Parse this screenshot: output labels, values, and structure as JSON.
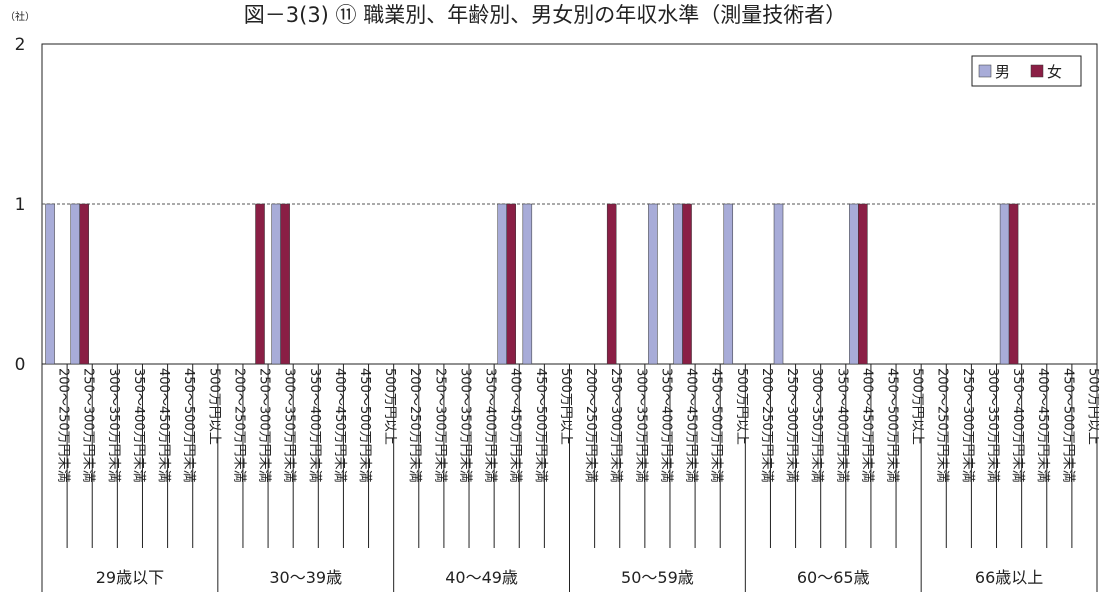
{
  "chart_data": {
    "type": "bar",
    "title": "図－3(3) ⑪ 職業別、年齢別、男女別の年収水準（測量技術者）",
    "unit_label": "（社）",
    "ylim": [
      0,
      2
    ],
    "yticks": [
      "0",
      "1",
      "2"
    ],
    "gridlines": [
      1
    ],
    "legend_position": "top-right",
    "colors": {
      "男": "#a8acd8",
      "女": "#8a1f45"
    },
    "income_categories": [
      "200～250万円未満",
      "250～300万円未満",
      "300～350万円未満",
      "350～400万円未満",
      "400～450万円未満",
      "450～500万円未満",
      "500万円以上"
    ],
    "age_groups": [
      "29歳以下",
      "30～39歳",
      "40～49歳",
      "50～59歳",
      "60～65歳",
      "66歳以上"
    ],
    "series": [
      {
        "name": "男",
        "color": "#a8acd8",
        "values": [
          [
            1,
            1,
            0,
            0,
            0,
            0,
            0
          ],
          [
            0,
            0,
            1,
            0,
            0,
            0,
            0
          ],
          [
            0,
            0,
            0,
            0,
            1,
            1,
            0
          ],
          [
            0,
            0,
            0,
            1,
            1,
            0,
            1
          ],
          [
            0,
            1,
            0,
            0,
            1,
            0,
            0
          ],
          [
            0,
            0,
            0,
            1,
            0,
            0,
            0
          ]
        ]
      },
      {
        "name": "女",
        "color": "#8a1f45",
        "values": [
          [
            0,
            1,
            0,
            0,
            0,
            0,
            0
          ],
          [
            0,
            1,
            1,
            0,
            0,
            0,
            0
          ],
          [
            0,
            0,
            0,
            0,
            1,
            0,
            0
          ],
          [
            0,
            1,
            0,
            0,
            1,
            0,
            0
          ],
          [
            0,
            0,
            0,
            0,
            1,
            0,
            0
          ],
          [
            0,
            0,
            0,
            1,
            0,
            0,
            0
          ]
        ]
      }
    ]
  }
}
